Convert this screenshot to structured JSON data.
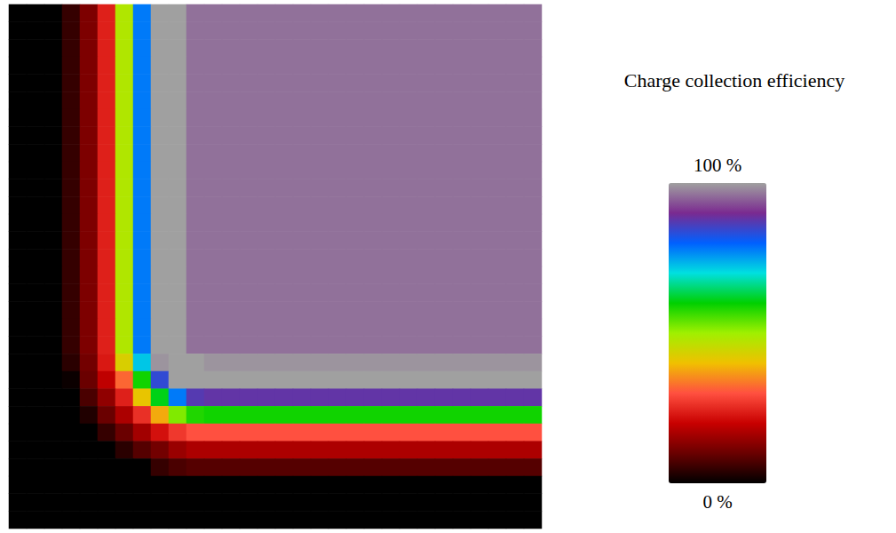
{
  "chart_data": {
    "type": "heatmap",
    "tick_labels": false,
    "cells": [
      [
        0,
        0,
        0,
        5,
        12,
        24,
        48,
        78,
        100,
        100,
        96,
        96,
        96,
        96,
        96,
        96,
        96,
        96,
        96,
        96,
        96,
        96,
        96,
        96,
        96,
        96,
        96,
        96,
        96,
        96
      ],
      [
        0,
        0,
        0,
        5,
        12,
        24,
        48,
        78,
        100,
        100,
        96,
        96,
        96,
        96,
        96,
        96,
        96,
        96,
        96,
        96,
        96,
        96,
        96,
        96,
        96,
        96,
        96,
        96,
        96,
        96
      ],
      [
        0,
        0,
        0,
        5,
        12,
        24,
        48,
        78,
        100,
        100,
        96,
        96,
        96,
        96,
        96,
        96,
        96,
        96,
        96,
        96,
        96,
        96,
        96,
        96,
        96,
        96,
        96,
        96,
        96,
        96
      ],
      [
        0,
        0,
        0,
        5,
        12,
        24,
        48,
        78,
        100,
        100,
        96,
        96,
        96,
        96,
        96,
        96,
        96,
        96,
        96,
        96,
        96,
        96,
        96,
        96,
        96,
        96,
        96,
        96,
        96,
        96
      ],
      [
        0,
        0,
        0,
        5,
        12,
        24,
        48,
        78,
        100,
        100,
        96,
        96,
        96,
        96,
        96,
        96,
        96,
        96,
        96,
        96,
        96,
        96,
        96,
        96,
        96,
        96,
        96,
        96,
        96,
        96
      ],
      [
        0,
        0,
        0,
        5,
        12,
        24,
        48,
        78,
        100,
        100,
        96,
        96,
        96,
        96,
        96,
        96,
        96,
        96,
        96,
        96,
        96,
        96,
        96,
        96,
        96,
        96,
        96,
        96,
        96,
        96
      ],
      [
        0,
        0,
        0,
        5,
        12,
        24,
        48,
        78,
        100,
        100,
        96,
        96,
        96,
        96,
        96,
        96,
        96,
        96,
        96,
        96,
        96,
        96,
        96,
        96,
        96,
        96,
        96,
        96,
        96,
        96
      ],
      [
        0,
        0,
        0,
        5,
        12,
        24,
        48,
        78,
        100,
        100,
        96,
        96,
        96,
        96,
        96,
        96,
        96,
        96,
        96,
        96,
        96,
        96,
        96,
        96,
        96,
        96,
        96,
        96,
        96,
        96
      ],
      [
        0,
        0,
        0,
        5,
        12,
        24,
        48,
        78,
        100,
        100,
        96,
        96,
        96,
        96,
        96,
        96,
        96,
        96,
        96,
        96,
        96,
        96,
        96,
        96,
        96,
        96,
        96,
        96,
        96,
        96
      ],
      [
        0,
        0,
        0,
        5,
        12,
        24,
        48,
        78,
        100,
        100,
        96,
        96,
        96,
        96,
        96,
        96,
        96,
        96,
        96,
        96,
        96,
        96,
        96,
        96,
        96,
        96,
        96,
        96,
        96,
        96
      ],
      [
        0,
        0,
        0,
        5,
        12,
        24,
        48,
        78,
        100,
        100,
        96,
        96,
        96,
        96,
        96,
        96,
        96,
        96,
        96,
        96,
        96,
        96,
        96,
        96,
        96,
        96,
        96,
        96,
        96,
        96
      ],
      [
        0,
        0,
        0,
        5,
        12,
        24,
        48,
        78,
        100,
        100,
        96,
        96,
        96,
        96,
        96,
        96,
        96,
        96,
        96,
        96,
        96,
        96,
        96,
        96,
        96,
        96,
        96,
        96,
        96,
        96
      ],
      [
        0,
        0,
        0,
        5,
        12,
        24,
        48,
        78,
        100,
        100,
        96,
        96,
        96,
        96,
        96,
        96,
        96,
        96,
        96,
        96,
        96,
        96,
        96,
        96,
        96,
        96,
        96,
        96,
        96,
        96
      ],
      [
        0,
        0,
        0,
        5,
        12,
        24,
        48,
        78,
        100,
        100,
        96,
        96,
        96,
        96,
        96,
        96,
        96,
        96,
        96,
        96,
        96,
        96,
        96,
        96,
        96,
        96,
        96,
        96,
        96,
        96
      ],
      [
        0,
        0,
        0,
        5,
        12,
        24,
        48,
        78,
        100,
        100,
        96,
        96,
        96,
        96,
        96,
        96,
        96,
        96,
        96,
        96,
        96,
        96,
        96,
        96,
        96,
        96,
        96,
        96,
        96,
        96
      ],
      [
        0,
        0,
        0,
        5,
        12,
        24,
        48,
        78,
        100,
        100,
        96,
        96,
        96,
        96,
        96,
        96,
        96,
        96,
        96,
        96,
        96,
        96,
        96,
        96,
        96,
        96,
        96,
        96,
        96,
        96
      ],
      [
        0,
        0,
        0,
        5,
        12,
        24,
        48,
        78,
        100,
        100,
        96,
        96,
        96,
        96,
        96,
        96,
        96,
        96,
        96,
        96,
        96,
        96,
        96,
        96,
        96,
        96,
        96,
        96,
        96,
        96
      ],
      [
        0,
        0,
        0,
        5,
        12,
        24,
        48,
        78,
        100,
        100,
        96,
        96,
        96,
        96,
        96,
        96,
        96,
        96,
        96,
        96,
        96,
        96,
        96,
        96,
        96,
        96,
        96,
        96,
        96,
        96
      ],
      [
        0,
        0,
        0,
        5,
        12,
        24,
        48,
        78,
        100,
        100,
        96,
        96,
        96,
        96,
        96,
        96,
        96,
        96,
        96,
        96,
        96,
        96,
        96,
        96,
        96,
        96,
        96,
        96,
        96,
        96
      ],
      [
        0,
        0,
        0,
        5,
        12,
        24,
        48,
        78,
        100,
        100,
        96,
        96,
        96,
        96,
        96,
        96,
        96,
        96,
        96,
        96,
        96,
        96,
        96,
        96,
        96,
        96,
        96,
        96,
        96,
        96
      ],
      [
        0,
        0,
        0,
        4,
        11,
        23,
        43,
        72,
        99,
        100,
        100,
        99,
        99,
        99,
        99,
        99,
        99,
        99,
        99,
        99,
        99,
        99,
        99,
        99,
        99,
        99,
        99,
        99,
        99,
        99
      ],
      [
        0,
        0,
        0,
        1,
        10,
        19,
        32,
        59,
        84,
        100,
        100,
        100,
        100,
        100,
        100,
        100,
        100,
        100,
        100,
        100,
        100,
        100,
        100,
        100,
        100,
        100,
        100,
        100,
        100,
        100
      ],
      [
        0,
        0,
        0,
        0,
        7,
        14,
        24,
        41,
        61,
        78,
        87,
        88,
        88,
        88,
        88,
        88,
        88,
        88,
        88,
        88,
        88,
        88,
        88,
        88,
        88,
        88,
        88,
        88,
        88,
        88
      ],
      [
        0,
        0,
        0,
        0,
        3,
        10,
        17,
        26,
        38,
        52,
        58,
        59,
        59,
        59,
        59,
        59,
        59,
        59,
        59,
        59,
        59,
        59,
        59,
        59,
        59,
        59,
        59,
        59,
        59,
        59
      ],
      [
        0,
        0,
        0,
        0,
        0,
        5,
        10,
        16,
        22,
        27,
        30,
        30,
        30,
        30,
        30,
        30,
        30,
        30,
        30,
        30,
        30,
        30,
        30,
        30,
        30,
        30,
        30,
        30,
        30,
        30
      ],
      [
        0,
        0,
        0,
        0,
        0,
        0,
        4,
        8,
        11,
        15,
        17,
        17,
        17,
        17,
        17,
        17,
        17,
        17,
        17,
        17,
        17,
        17,
        17,
        17,
        17,
        17,
        17,
        17,
        17,
        17
      ],
      [
        0,
        0,
        0,
        0,
        0,
        0,
        0,
        0,
        5,
        7,
        8,
        8,
        8,
        8,
        8,
        8,
        8,
        8,
        8,
        8,
        8,
        8,
        8,
        8,
        8,
        8,
        8,
        8,
        8,
        8
      ],
      [
        0,
        0,
        0,
        0,
        0,
        0,
        0,
        0,
        0,
        0,
        0,
        0,
        0,
        0,
        0,
        0,
        0,
        0,
        0,
        0,
        0,
        0,
        0,
        0,
        0,
        0,
        0,
        0,
        0,
        0
      ],
      [
        0,
        0,
        0,
        0,
        0,
        0,
        0,
        0,
        0,
        0,
        0,
        0,
        0,
        0,
        0,
        0,
        0,
        0,
        0,
        0,
        0,
        0,
        0,
        0,
        0,
        0,
        0,
        0,
        0,
        0
      ],
      [
        0,
        0,
        0,
        0,
        0,
        0,
        0,
        0,
        0,
        0,
        0,
        0,
        0,
        0,
        0,
        0,
        0,
        0,
        0,
        0,
        0,
        0,
        0,
        0,
        0,
        0,
        0,
        0,
        0,
        0
      ]
    ],
    "colorbar": {
      "label": "Charge collection efficiency",
      "range": [
        0,
        100
      ],
      "ticks": [
        {
          "value": 0,
          "label": "0 %"
        },
        {
          "value": 100,
          "label": "100 %"
        }
      ]
    }
  }
}
